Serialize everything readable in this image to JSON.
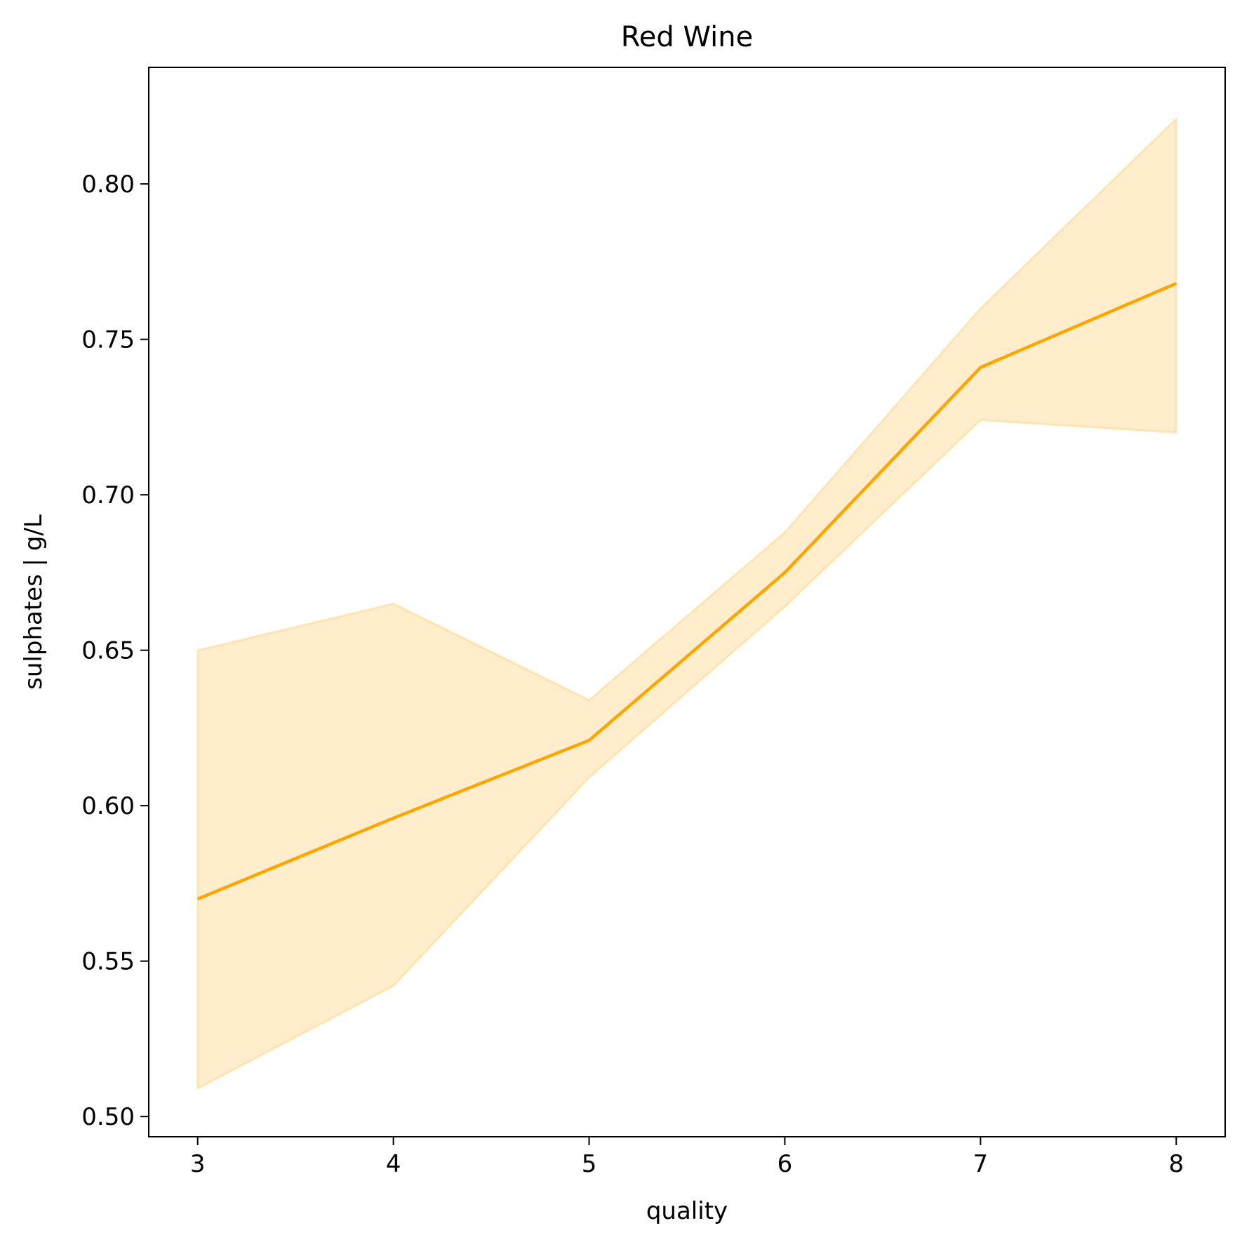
{
  "chart_data": {
    "type": "line",
    "title": "Red Wine",
    "xlabel": "quality",
    "ylabel": "sulphates | g/L",
    "x": [
      3,
      4,
      5,
      6,
      7,
      8
    ],
    "xlim": [
      2.75,
      8.25
    ],
    "ylim": [
      0.4935,
      0.8375
    ],
    "x_ticks": [
      3,
      4,
      5,
      6,
      7,
      8
    ],
    "x_tick_labels": [
      "3",
      "4",
      "5",
      "6",
      "7",
      "8"
    ],
    "y_ticks": [
      0.5,
      0.55,
      0.6,
      0.65,
      0.7,
      0.75,
      0.8
    ],
    "y_tick_labels": [
      "0.50",
      "0.55",
      "0.60",
      "0.65",
      "0.70",
      "0.75",
      "0.80"
    ],
    "grid": false,
    "series": [
      {
        "values": [
          0.57,
          0.596,
          0.621,
          0.675,
          0.741,
          0.768
        ],
        "ci_lower": [
          0.509,
          0.542,
          0.609,
          0.664,
          0.724,
          0.72
        ],
        "ci_upper": [
          0.65,
          0.665,
          0.634,
          0.688,
          0.76,
          0.821
        ],
        "color": "#ffa500",
        "band_color": "#ffa500"
      }
    ]
  }
}
